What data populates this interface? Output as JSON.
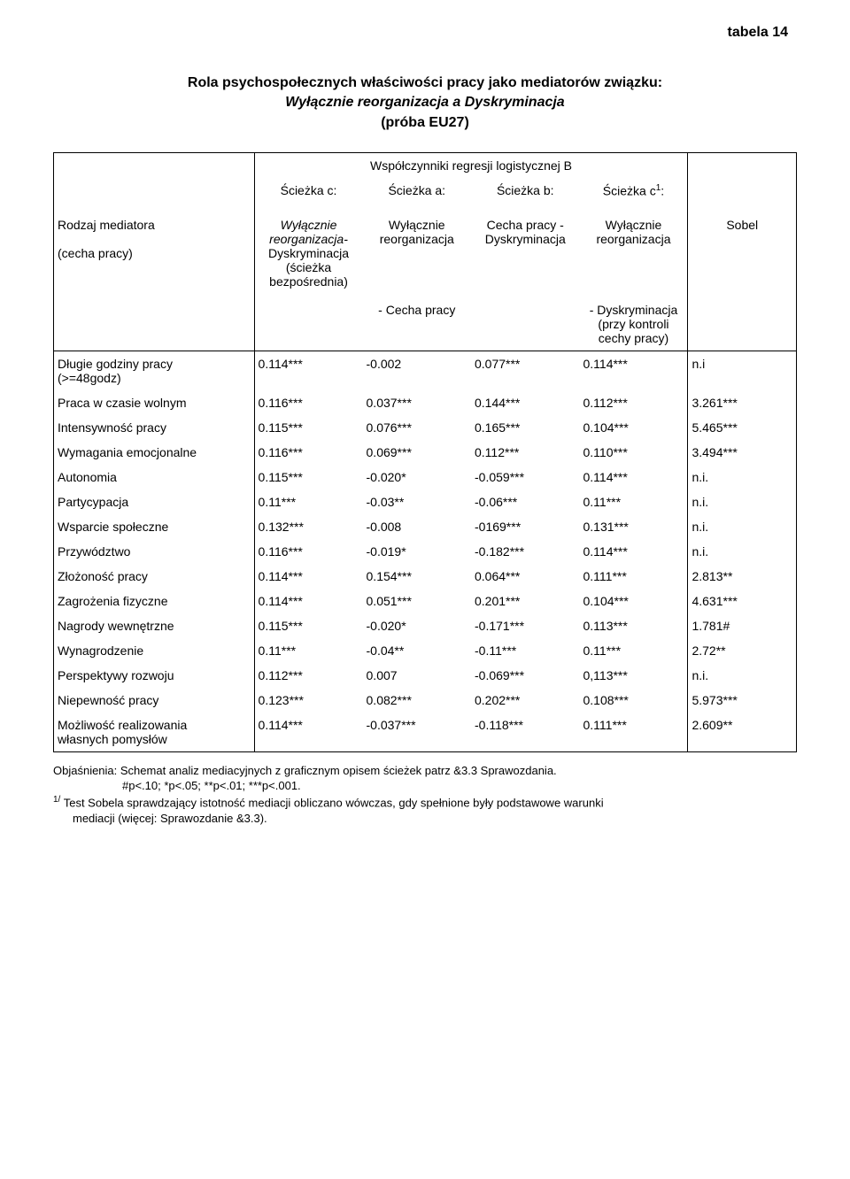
{
  "tabela_label": "tabela 14",
  "title_line1": "Rola psychospołecznych właściwości pracy jako mediatorów związku:",
  "title_line2_italic": "Wyłącznie reorganizacja  a  Dyskryminacja",
  "title_line3": "(próba EU27)",
  "header": {
    "span": "Współczynniki regresji logistycznej B",
    "c": "Ścieżka c:",
    "a": "Ścieżka a:",
    "b": "Ścieżka b:",
    "c1": "Ścieżka c",
    "c1_sup": "1",
    "c1_colon": ":",
    "mediator_l1": "Rodzaj mediatora",
    "mediator_l2": "(cecha pracy)",
    "col_c_l1": "Wyłącznie reorganizacja-",
    "col_c_l2": "Dyskryminacja",
    "col_c_l3": "(ścieżka bezpośrednia)",
    "col_a_l1": "Wyłącznie",
    "col_a_l2": "reorganizacja",
    "col_a_sub": "- Cecha pracy",
    "col_b_l1": "Cecha pracy -",
    "col_b_l2": "Dyskryminacja",
    "col_c1_l1": "Wyłącznie",
    "col_c1_l2": "reorganizacja",
    "col_c1_sub_l1": "- Dyskryminacja",
    "col_c1_sub_l2": "(przy kontroli",
    "col_c1_sub_l3": "cechy pracy)",
    "sobel": "Sobel"
  },
  "rows": [
    {
      "label": "Długie godziny pracy\n(>=48godz)",
      "c": "0.114***",
      "a": "-0.002",
      "b": "0.077***",
      "c1": "0.114***",
      "s": "n.i"
    },
    {
      "label": "Praca w czasie wolnym",
      "c": "0.116***",
      "a": "0.037***",
      "b": "0.144***",
      "c1": "0.112***",
      "s": "3.261***"
    },
    {
      "label": "Intensywność pracy",
      "c": "0.115***",
      "a": "0.076***",
      "b": "0.165***",
      "c1": "0.104***",
      "s": "5.465***"
    },
    {
      "label": "Wymagania emocjonalne",
      "c": "0.116***",
      "a": "0.069***",
      "b": "0.112***",
      "c1": "0.110***",
      "s": "3.494***"
    },
    {
      "label": "Autonomia",
      "c": "0.115***",
      "a": "-0.020*",
      "b": "-0.059***",
      "c1": "0.114***",
      "s": "n.i."
    },
    {
      "label": "Partycypacja",
      "c": "0.11***",
      "a": "-0.03**",
      "b": "-0.06***",
      "c1": "0.11***",
      "s": "n.i."
    },
    {
      "label": "Wsparcie społeczne",
      "c": "0.132***",
      "a": "-0.008",
      "b": "-0169***",
      "c1": "0.131***",
      "s": "n.i."
    },
    {
      "label": "Przywództwo",
      "c": "0.116***",
      "a": "-0.019*",
      "b": "-0.182***",
      "c1": "0.114***",
      "s": "n.i."
    },
    {
      "label": "Złożoność pracy",
      "c": "0.114***",
      "a": "0.154***",
      "b": "0.064***",
      "c1": "0.111***",
      "s": "2.813**"
    },
    {
      "label": "Zagrożenia fizyczne",
      "c": "0.114***",
      "a": "0.051***",
      "b": "0.201***",
      "c1": "0.104***",
      "s": "4.631***"
    },
    {
      "label": "Nagrody wewnętrzne",
      "c": "0.115***",
      "a": "-0.020*",
      "b": "-0.171***",
      "c1": "0.113***",
      "s": "1.781#"
    },
    {
      "label": "Wynagrodzenie",
      "c": "0.11***",
      "a": "-0.04**",
      "b": "-0.11***",
      "c1": "0.11***",
      "s": "2.72**"
    },
    {
      "label": "Perspektywy rozwoju",
      "c": "0.112***",
      "a": "0.007",
      "b": "-0.069***",
      "c1": "0,113***",
      "s": "n.i."
    },
    {
      "label": "Niepewność pracy",
      "c": "0.123***",
      "a": "0.082***",
      "b": "0.202***",
      "c1": "0.108***",
      "s": "5.973***"
    },
    {
      "label": "Możliwość realizowania\nwłasnych pomysłów",
      "c": "0.114***",
      "a": "-0.037***",
      "b": "-0.118***",
      "c1": "0.111***",
      "s": "2.609**"
    }
  ],
  "footnote": {
    "l1a": "Objaśnienia:  Schemat analiz mediacyjnych z graficznym opisem ścieżek patrz  &3.3 Sprawozdania.",
    "l2": "#p<.10;  *p<.05;   **p<.01;   ***p<.001.",
    "l3_sup": "1/",
    "l3": " Test Sobela sprawdzający istotność mediacji obliczano  wówczas,  gdy spełnione były podstawowe warunki",
    "l4": "mediacji  (więcej: Sprawozdanie &3.3)."
  }
}
